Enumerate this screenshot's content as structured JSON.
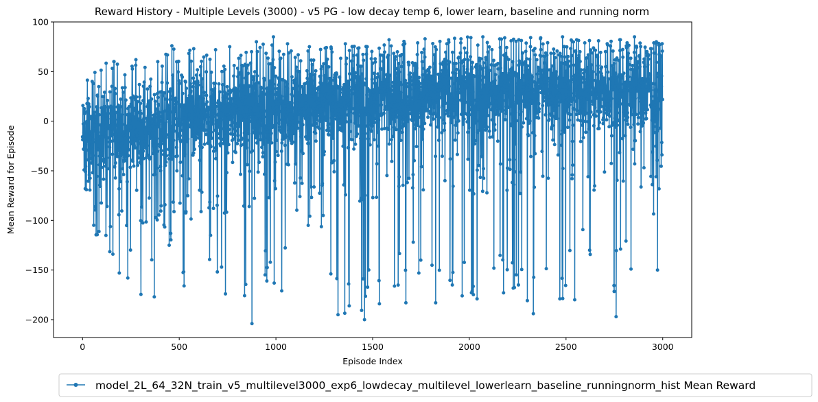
{
  "chart_data": {
    "type": "line",
    "title": "Reward History - Multiple Levels (3000) - v5 PG - low decay temp 6, lower learn, baseline and running norm",
    "xlabel": "Episode Index",
    "ylabel": "Mean Reward for Episode",
    "xlim": [
      -150,
      3150
    ],
    "ylim": [
      -218,
      100
    ],
    "xticks": [
      0,
      500,
      1000,
      1500,
      2000,
      2500,
      3000
    ],
    "yticks": [
      -200,
      -150,
      -100,
      -50,
      0,
      50,
      100
    ],
    "grid": false,
    "legend_position": "bottom-center",
    "series_color": "#1f77b4",
    "marker": "circle",
    "series": [
      {
        "name": "model_2L_64_32N_train_v5_multilevel3000_exp6_lowdecay_multilevel_lowerlearn_baseline_runningnorm_hist Mean Reward",
        "x": [
          0,
          100,
          200,
          300,
          400,
          500,
          600,
          700,
          800,
          900,
          1000,
          1100,
          1200,
          1300,
          1400,
          1500,
          1600,
          1700,
          1800,
          1900,
          2000,
          2100,
          2200,
          2300,
          2400,
          2500,
          2600,
          2700,
          2800,
          2900,
          3000
        ],
        "values": [
          -20,
          -12,
          -10,
          -5,
          -3,
          0,
          5,
          8,
          10,
          12,
          13,
          15,
          18,
          20,
          22,
          24,
          25,
          27,
          28,
          28,
          30,
          30,
          31,
          32,
          32,
          33,
          33,
          33,
          34,
          34,
          35
        ],
        "max": [
          40,
          60,
          62,
          60,
          76,
          73,
          72,
          75,
          70,
          85,
          78,
          75,
          73,
          78,
          75,
          82,
          77,
          83,
          78,
          83,
          85,
          84,
          82,
          84,
          85,
          82,
          81,
          82,
          85,
          80,
          78
        ],
        "min": [
          -69,
          -134,
          -158,
          -177,
          -125,
          -166,
          -115,
          -174,
          -204,
          -161,
          -171,
          -105,
          -95,
          -195,
          -200,
          -184,
          -183,
          -140,
          -183,
          -176,
          -179,
          -173,
          -165,
          -194,
          -179,
          -180,
          -130,
          -197,
          -149,
          -150,
          -49
        ]
      }
    ]
  }
}
